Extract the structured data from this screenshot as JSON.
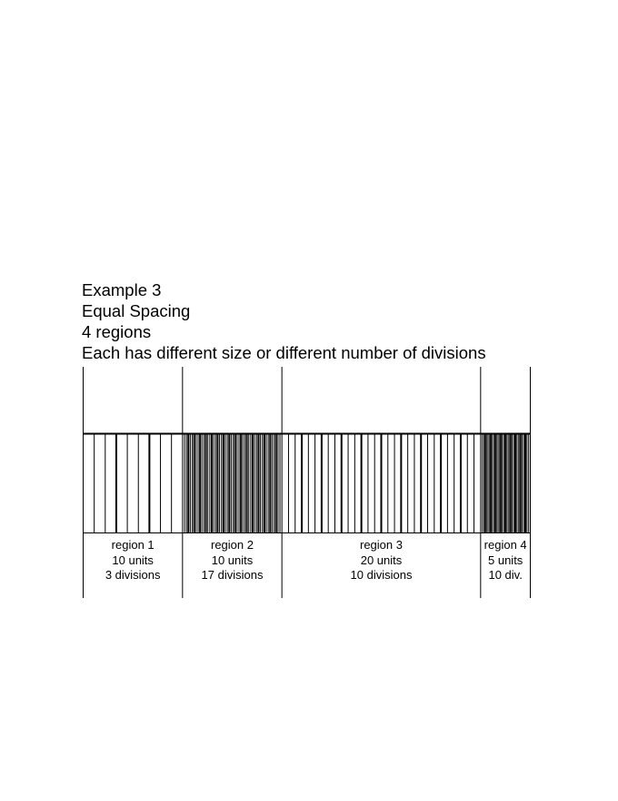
{
  "heading": {
    "line1": "Example 3",
    "line2": "Equal Spacing",
    "line3": "4 regions",
    "line4": "Each has different size or different number of divisions"
  },
  "regions": [
    {
      "label": "region 1",
      "units_text": "10 units",
      "div_text": "3 divisions",
      "units": 10,
      "divisions": 3
    },
    {
      "label": "region 2",
      "units_text": "10 units",
      "div_text": "17 divisions",
      "units": 10,
      "divisions": 17
    },
    {
      "label": "region 3",
      "units_text": "20 units",
      "div_text": "10 divisions",
      "units": 20,
      "divisions": 10
    },
    {
      "label": "region 4",
      "units_text": "5 units",
      "div_text": "10 div.",
      "units": 5,
      "divisions": 10
    }
  ]
}
